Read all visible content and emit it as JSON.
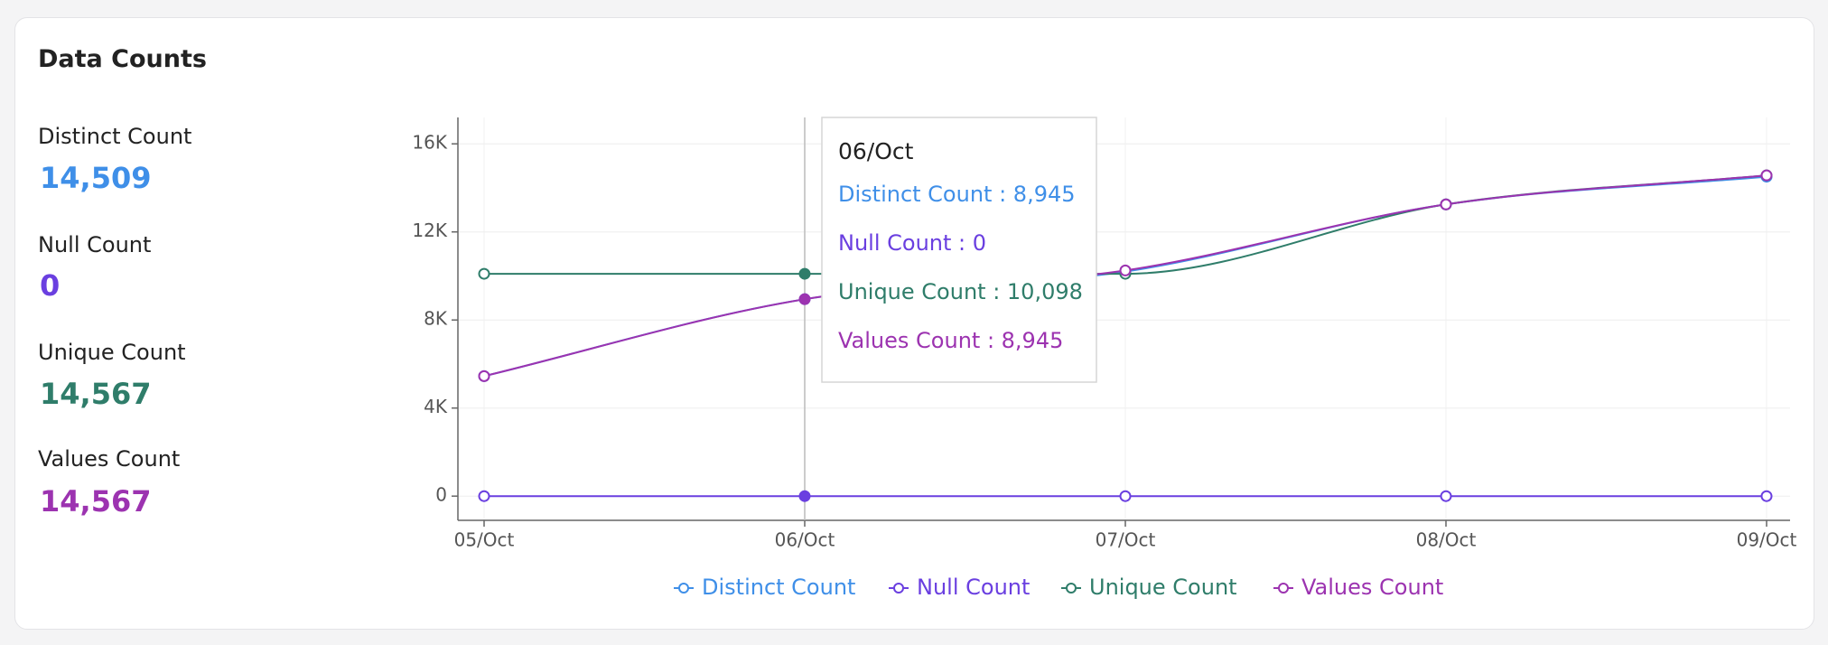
{
  "card": {
    "title": "Data Counts",
    "stats": [
      {
        "label": "Distinct Count",
        "value": "14,509"
      },
      {
        "label": "Null Count",
        "value": "0"
      },
      {
        "label": "Unique Count",
        "value": "14,567"
      },
      {
        "label": "Values Count",
        "value": "14,567"
      }
    ]
  },
  "chart_data": {
    "type": "line",
    "categories": [
      "05/Oct",
      "06/Oct",
      "07/Oct",
      "08/Oct",
      "09/Oct"
    ],
    "series": [
      {
        "name": "Distinct Count",
        "color": "#3f8fe8",
        "values": [
          5450,
          8945,
          10200,
          13250,
          14509
        ]
      },
      {
        "name": "Null Count",
        "color": "#6a3fe0",
        "values": [
          0,
          0,
          0,
          0,
          0
        ]
      },
      {
        "name": "Unique Count",
        "color": "#2f7d6a",
        "values": [
          10098,
          10098,
          10098,
          13250,
          14567
        ]
      },
      {
        "name": "Values Count",
        "color": "#9c33b0",
        "values": [
          5450,
          8945,
          10250,
          13250,
          14567
        ]
      }
    ],
    "ylim": [
      -1100,
      17200
    ],
    "yticks": [
      0,
      {
        "value": 4000,
        "label": "4K"
      },
      {
        "value": 8000,
        "label": "8K"
      },
      {
        "value": 12000,
        "label": "12K"
      },
      {
        "value": 16000,
        "label": "16K"
      }
    ],
    "grid": true
  },
  "tooltip": {
    "title": "06/Oct",
    "rows": [
      "Distinct Count : 8,945",
      "Null Count : 0",
      "Unique Count : 10,098",
      "Values Count : 8,945"
    ]
  }
}
